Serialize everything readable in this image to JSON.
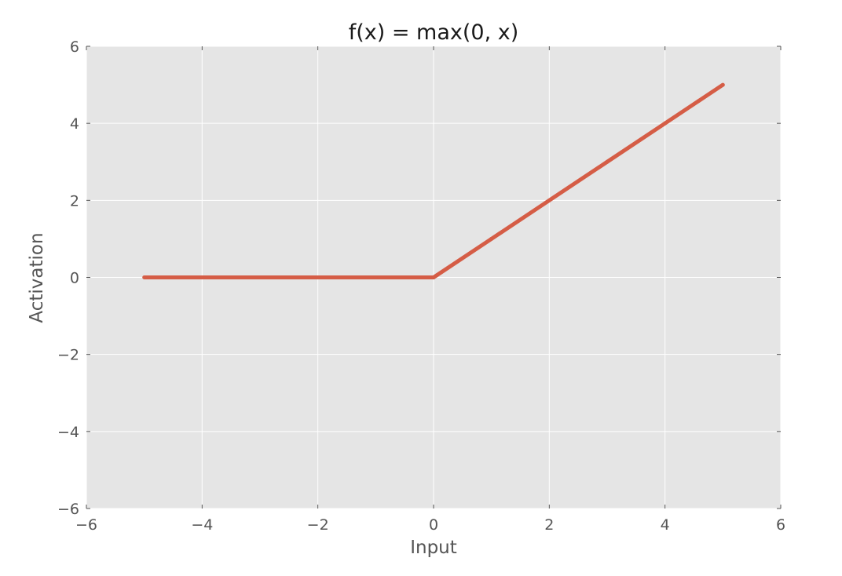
{
  "chart_data": {
    "type": "line",
    "title": "f(x) = max(0, x)",
    "xlabel": "Input",
    "ylabel": "Activation",
    "xlim": [
      -6,
      6
    ],
    "ylim": [
      -6,
      6
    ],
    "xticks": [
      -6,
      -4,
      -2,
      0,
      2,
      4,
      6
    ],
    "yticks": [
      -6,
      -4,
      -2,
      0,
      2,
      4,
      6
    ],
    "xtick_labels": [
      "−6",
      "−4",
      "−2",
      "0",
      "2",
      "4",
      "6"
    ],
    "ytick_labels": [
      "−6",
      "−4",
      "−2",
      "0",
      "2",
      "4",
      "6"
    ],
    "grid": true,
    "background_color": "#e5e5e5",
    "grid_color": "#ffffff",
    "series": [
      {
        "color": "#d55d46",
        "x": [
          -5,
          -4,
          -3,
          -2,
          -1,
          0,
          1,
          2,
          3,
          4,
          5
        ],
        "y": [
          0,
          0,
          0,
          0,
          0,
          0,
          1,
          2,
          3,
          4,
          5
        ]
      }
    ]
  }
}
